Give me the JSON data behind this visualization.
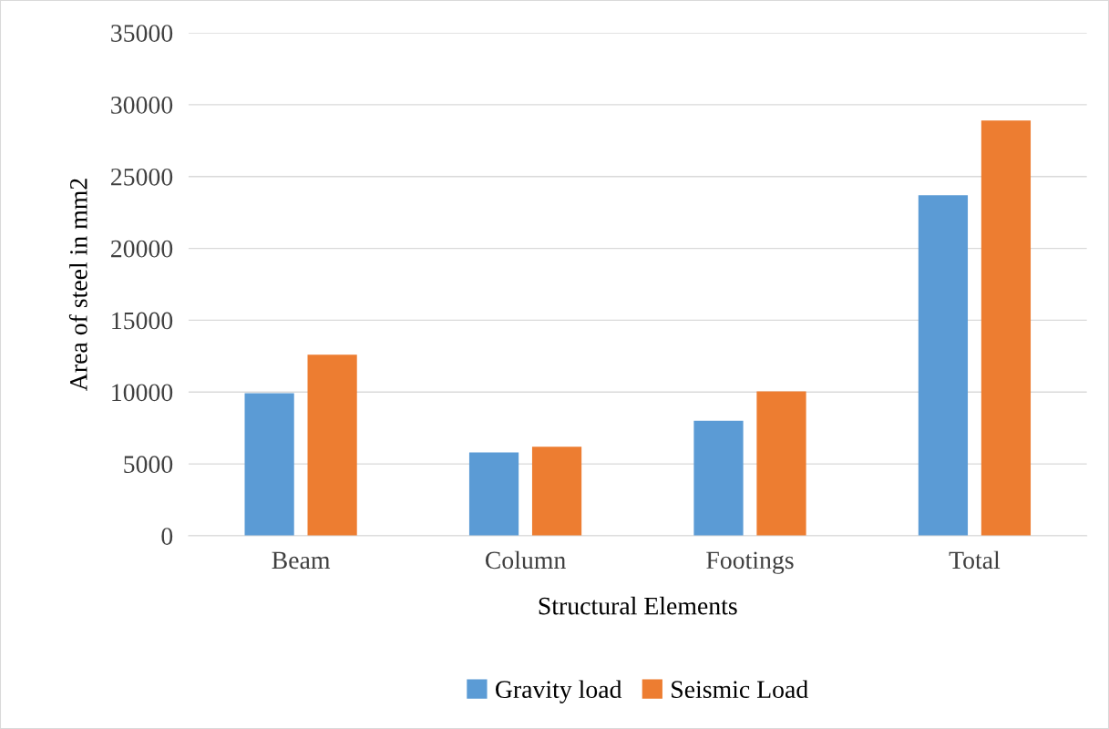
{
  "chart_data": {
    "type": "bar",
    "xlabel": "Structural Elements",
    "ylabel": "Area of steel in mm2",
    "categories": [
      "Beam",
      "Column",
      "Footings",
      "Total"
    ],
    "series": [
      {
        "name": "Gravity load",
        "color": "#5b9bd5",
        "values": [
          9930,
          5800,
          8000,
          23700
        ]
      },
      {
        "name": "Seismic Load",
        "color": "#ed7d31",
        "values": [
          12600,
          6200,
          10050,
          28900
        ]
      }
    ],
    "ylim": [
      0,
      35000
    ],
    "yticks": [
      0,
      5000,
      10000,
      15000,
      20000,
      25000,
      30000,
      35000
    ],
    "grid": "y",
    "legend": "bottom"
  }
}
